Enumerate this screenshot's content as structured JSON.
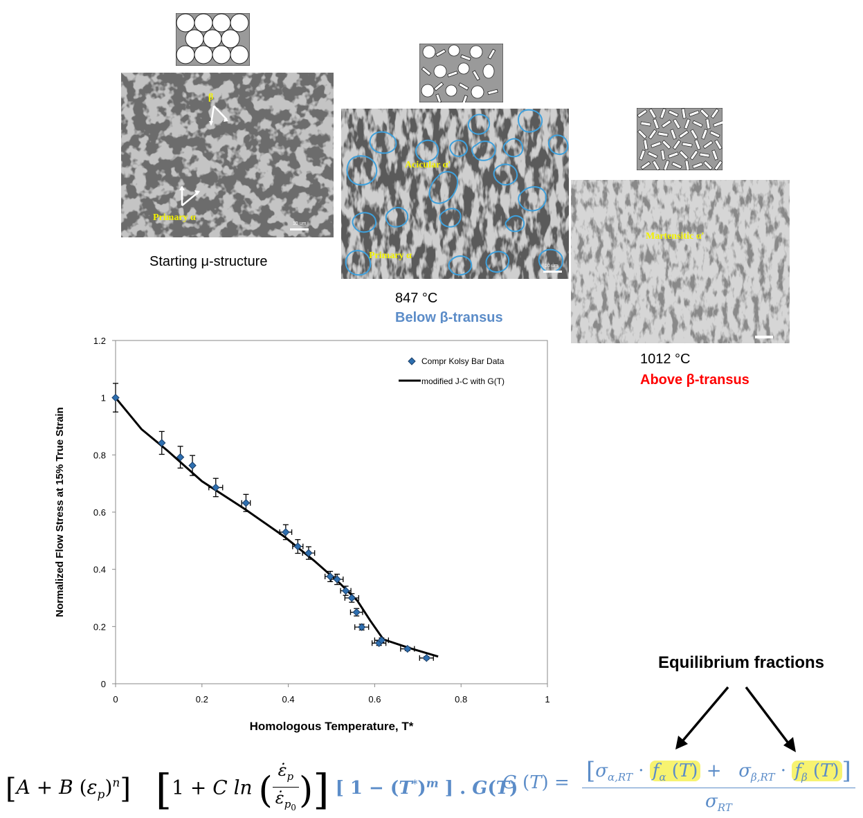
{
  "micrographs": {
    "start": {
      "labels": {
        "beta": "β",
        "primary_alpha": "Primary α"
      },
      "scale": "10 um",
      "caption": "Starting μ-structure"
    },
    "mid": {
      "labels": {
        "acicular": "Acicular α'",
        "primary_alpha": "Primary α"
      },
      "scale": "10 um",
      "caption_temp": "847 °C",
      "caption_phase": "Below β-transus",
      "outline_color": "#3ea0dc"
    },
    "high": {
      "labels": {
        "martensitic": "Martensitic α'"
      },
      "caption_temp": "1012 °C",
      "caption_phase": "Above β-transus",
      "phase_color": "#ff0000"
    }
  },
  "chart_data": {
    "type": "scatter",
    "xlabel": "Homologous Temperature, T*",
    "ylabel": "Normalized Flow Stress at 15% True Strain",
    "xlim": [
      0,
      1
    ],
    "ylim": [
      0,
      1.2
    ],
    "xticks": [
      "0",
      "0.2",
      "0.4",
      "0.6",
      "0.8",
      "1"
    ],
    "yticks": [
      "0",
      "0.2",
      "0.4",
      "0.6",
      "0.8",
      "1",
      "1.2"
    ],
    "grid": false,
    "legend_position": "top-right",
    "series": [
      {
        "name": "Compr Kolsy Bar Data",
        "kind": "scatter",
        "color": "#2e6fb0",
        "points": [
          {
            "x": 0.0,
            "y": 1.0,
            "ey": 0.05,
            "ex": 0.0
          },
          {
            "x": 0.107,
            "y": 0.842,
            "ey": 0.04,
            "ex": 0.0
          },
          {
            "x": 0.15,
            "y": 0.792,
            "ey": 0.038,
            "ex": 0.0
          },
          {
            "x": 0.178,
            "y": 0.763,
            "ey": 0.035,
            "ex": 0.0
          },
          {
            "x": 0.232,
            "y": 0.686,
            "ey": 0.032,
            "ex": 0.016
          },
          {
            "x": 0.302,
            "y": 0.632,
            "ey": 0.03,
            "ex": 0.01
          },
          {
            "x": 0.394,
            "y": 0.53,
            "ey": 0.026,
            "ex": 0.014
          },
          {
            "x": 0.422,
            "y": 0.48,
            "ey": 0.024,
            "ex": 0.012
          },
          {
            "x": 0.447,
            "y": 0.457,
            "ey": 0.022,
            "ex": 0.014
          },
          {
            "x": 0.497,
            "y": 0.375,
            "ey": 0.018,
            "ex": 0.012
          },
          {
            "x": 0.513,
            "y": 0.365,
            "ey": 0.018,
            "ex": 0.014
          },
          {
            "x": 0.533,
            "y": 0.325,
            "ey": 0.016,
            "ex": 0.012
          },
          {
            "x": 0.547,
            "y": 0.3,
            "ey": 0.015,
            "ex": 0.016
          },
          {
            "x": 0.558,
            "y": 0.25,
            "ey": 0.013,
            "ex": 0.014
          },
          {
            "x": 0.57,
            "y": 0.198,
            "ey": 0.01,
            "ex": 0.016
          },
          {
            "x": 0.61,
            "y": 0.142,
            "ey": 0.008,
            "ex": 0.016
          },
          {
            "x": 0.616,
            "y": 0.152,
            "ey": 0.008,
            "ex": 0.016
          },
          {
            "x": 0.676,
            "y": 0.122,
            "ey": 0.006,
            "ex": 0.016
          },
          {
            "x": 0.72,
            "y": 0.09,
            "ey": 0.005,
            "ex": 0.016
          }
        ]
      },
      {
        "name": "modified J-C with G(T)",
        "kind": "line",
        "color": "#000000",
        "points": [
          {
            "x": 0.0,
            "y": 1.0
          },
          {
            "x": 0.06,
            "y": 0.89
          },
          {
            "x": 0.12,
            "y": 0.815
          },
          {
            "x": 0.2,
            "y": 0.708
          },
          {
            "x": 0.3,
            "y": 0.61
          },
          {
            "x": 0.39,
            "y": 0.515
          },
          {
            "x": 0.46,
            "y": 0.43
          },
          {
            "x": 0.52,
            "y": 0.35
          },
          {
            "x": 0.56,
            "y": 0.29
          },
          {
            "x": 0.59,
            "y": 0.22
          },
          {
            "x": 0.62,
            "y": 0.155
          },
          {
            "x": 0.68,
            "y": 0.125
          },
          {
            "x": 0.747,
            "y": 0.095
          }
        ]
      }
    ]
  },
  "annotation": {
    "title": "Equilibrium fractions"
  },
  "equations": {
    "jc_part1": "[A + B (εp)n]",
    "jc_part2": "[1 + C ln(ε̇p / ε̇p0)]",
    "jc_part3": "[ 1 − (T*)m ] . G(T)",
    "g_lhs": "G (T) =",
    "g_num_open": "[",
    "g_sigma_alpha": "σα,RT",
    "g_dot": "·",
    "g_f_alpha": "fα (T)",
    "g_plus": "+",
    "g_sigma_beta": "σβ,RT",
    "g_f_beta": "fβ (T)",
    "g_num_close": "]",
    "g_den": "σRT"
  }
}
